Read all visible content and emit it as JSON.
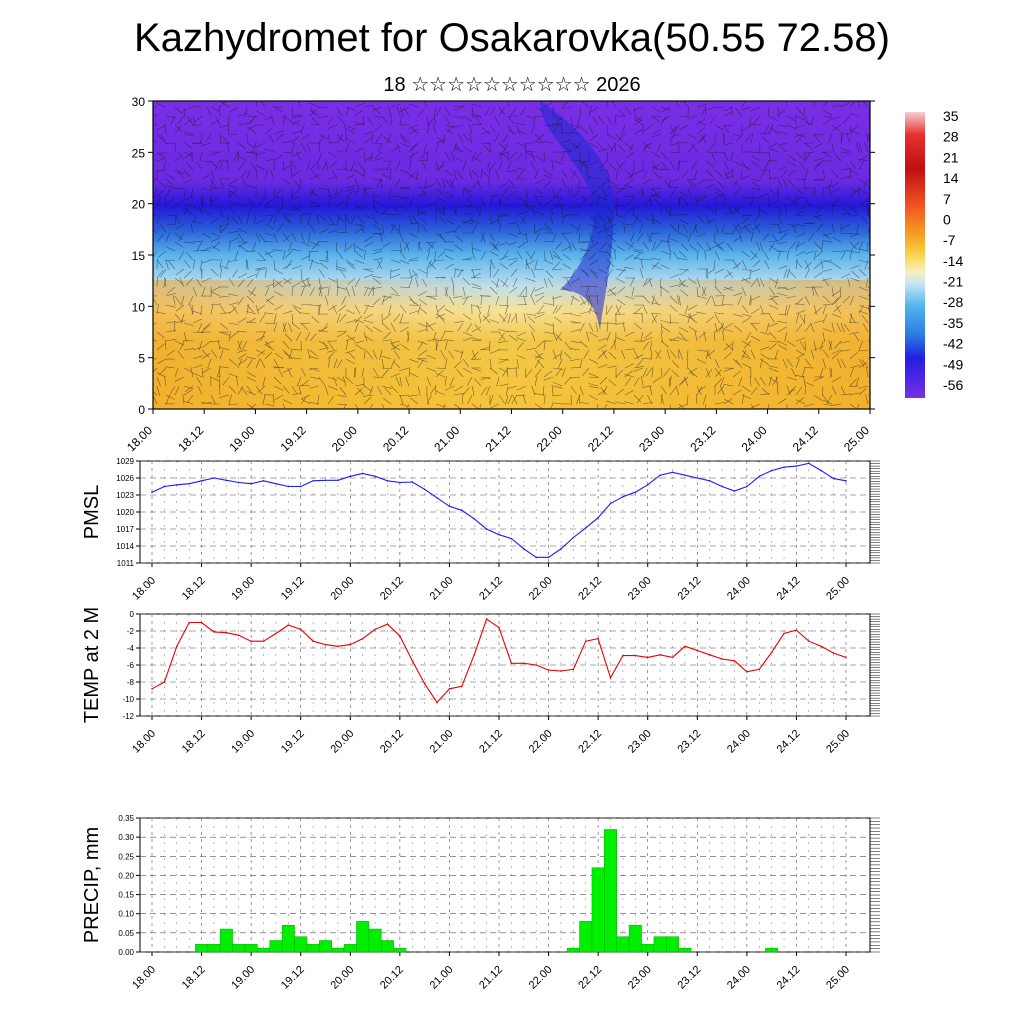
{
  "title": "Kazhydromet for Osakarovka(50.55 72.58)",
  "subtitle": "18 ☆☆☆☆☆☆☆☆☆☆ 2026",
  "colors": {
    "pmsl_line": "#1a1aff",
    "temp_line": "#e60000",
    "precip_bar": "#00ee00",
    "grid": "#555555"
  },
  "chart_data": [
    {
      "type": "heatmap",
      "title": "",
      "xlabel": "",
      "ylabel": "",
      "x_tick_labels": [
        "18.00",
        "18.12",
        "19.00",
        "19.12",
        "20.00",
        "20.12",
        "21.00",
        "21.12",
        "22.00",
        "22.12",
        "23.00",
        "23.12",
        "24.00",
        "24.12",
        "25.00"
      ],
      "y_ticks": [
        0,
        5,
        10,
        15,
        20,
        25,
        30
      ],
      "ylim": [
        0,
        30
      ],
      "overlay": "wind barbs",
      "colorbar_labels": [
        "35",
        "28",
        "21",
        "14",
        "7",
        "0",
        "-7",
        "-14",
        "-21",
        "-28",
        "-35",
        "-42",
        "-49",
        "-56"
      ]
    },
    {
      "type": "line",
      "ylabel": "PMSL",
      "x_tick_labels": [
        "18.00",
        "18.12",
        "19.00",
        "19.12",
        "20.00",
        "20.12",
        "21.00",
        "21.12",
        "22.00",
        "22.12",
        "23.00",
        "23.12",
        "24.00",
        "24.12",
        "25.00"
      ],
      "y_ticks": [
        1011,
        1014,
        1017,
        1020,
        1023,
        1026,
        1029
      ],
      "ylim": [
        1011,
        1029
      ],
      "x": [
        0,
        3,
        6,
        9,
        12,
        15,
        18,
        21,
        24,
        27,
        30,
        33,
        36,
        39,
        42,
        45,
        48,
        51,
        54,
        57,
        60,
        63,
        66,
        69,
        72,
        75,
        78,
        81,
        84,
        87,
        90,
        93,
        96,
        99,
        102,
        105,
        108,
        111,
        114,
        117,
        120,
        123,
        126,
        129,
        132,
        135,
        138,
        141,
        144,
        147,
        150,
        153,
        156,
        159,
        162,
        165,
        168
      ],
      "series": [
        {
          "values": [
            1023.5,
            1024.5,
            1024.8,
            1025,
            1025.5,
            1026,
            1025.6,
            1025.2,
            1025,
            1025.5,
            1025,
            1024.5,
            1024.5,
            1025.5,
            1025.6,
            1025.6,
            1026.3,
            1026.8,
            1026.3,
            1025.5,
            1025.2,
            1025.3,
            1024,
            1022.5,
            1021,
            1020.3,
            1018.8,
            1017,
            1016,
            1015.3,
            1013.5,
            1012,
            1012,
            1013.5,
            1015.5,
            1017.2,
            1019,
            1021.5,
            1022.7,
            1023.5,
            1024.8,
            1026.5,
            1027,
            1026.5,
            1026,
            1025.5,
            1024.5,
            1023.7,
            1024.5,
            1026.3,
            1027.3,
            1027.9,
            1028.1,
            1028.6,
            1027.3,
            1025.9,
            1025.5
          ]
        }
      ]
    },
    {
      "type": "line",
      "ylabel": "TEMP at 2 M",
      "x_tick_labels": [
        "18.00",
        "18.12",
        "19.00",
        "19.12",
        "20.00",
        "20.12",
        "21.00",
        "21.12",
        "22.00",
        "22.12",
        "23.00",
        "23.12",
        "24.00",
        "24.12",
        "25.00"
      ],
      "y_ticks": [
        0,
        -2,
        -4,
        -6,
        -8,
        -10,
        -12
      ],
      "ylim": [
        -12,
        0
      ],
      "x": [
        0,
        3,
        6,
        9,
        12,
        15,
        18,
        21,
        24,
        27,
        30,
        33,
        36,
        39,
        42,
        45,
        48,
        51,
        54,
        57,
        60,
        63,
        66,
        69,
        72,
        75,
        78,
        81,
        84,
        87,
        90,
        93,
        96,
        99,
        102,
        105,
        108,
        111,
        114,
        117,
        120,
        123,
        126,
        129,
        132,
        135,
        138,
        141,
        144,
        147,
        150,
        153,
        156,
        159,
        162,
        165,
        168
      ],
      "series": [
        {
          "values": [
            -8.8,
            -8,
            -3.8,
            -1,
            -1,
            -2.1,
            -2.2,
            -2.5,
            -3.2,
            -3.2,
            -2.3,
            -1.3,
            -1.8,
            -3.2,
            -3.6,
            -3.8,
            -3.6,
            -2.9,
            -1.8,
            -1.2,
            -2.6,
            -5.5,
            -8.2,
            -10.4,
            -8.8,
            -8.5,
            -4.8,
            -0.6,
            -1.6,
            -5.8,
            -5.8,
            -6,
            -6.6,
            -6.7,
            -6.5,
            -3.2,
            -2.9,
            -7.5,
            -4.9,
            -4.9,
            -5.1,
            -4.8,
            -5.1,
            -3.8,
            -4.3,
            -4.8,
            -5.3,
            -5.5,
            -6.8,
            -6.5,
            -4.5,
            -2.3,
            -1.9,
            -3.2,
            -3.8,
            -4.6,
            -5.1
          ]
        }
      ]
    },
    {
      "type": "bar",
      "ylabel": "PRECIP, mm",
      "x_tick_labels": [
        "18.00",
        "18.12",
        "19.00",
        "19.12",
        "20.00",
        "20.12",
        "21.00",
        "21.12",
        "22.00",
        "22.12",
        "23.00",
        "23.12",
        "24.00",
        "24.12",
        "25.00"
      ],
      "y_tick_labels": [
        "0.00",
        "0.05",
        "0.10",
        "0.15",
        "0.20",
        "0.25",
        "0.30",
        "0.35"
      ],
      "ylim": [
        0,
        0.35
      ],
      "x": [
        0,
        3,
        6,
        9,
        12,
        15,
        18,
        21,
        24,
        27,
        30,
        33,
        36,
        39,
        42,
        45,
        48,
        51,
        54,
        57,
        60,
        63,
        66,
        69,
        72,
        75,
        78,
        81,
        84,
        87,
        90,
        93,
        96,
        99,
        102,
        105,
        108,
        111,
        114,
        117,
        120,
        123,
        126,
        129,
        132,
        135,
        138,
        141,
        144,
        147,
        150,
        153,
        156,
        159,
        162,
        165,
        168
      ],
      "values": [
        0,
        0,
        0,
        0,
        0.02,
        0.02,
        0.06,
        0.02,
        0.02,
        0.01,
        0.03,
        0.07,
        0.04,
        0.02,
        0.03,
        0.01,
        0.02,
        0.08,
        0.06,
        0.03,
        0.01,
        0,
        0,
        0,
        0,
        0,
        0,
        0,
        0,
        0,
        0,
        0,
        0,
        0,
        0.01,
        0.08,
        0.22,
        0.32,
        0.04,
        0.07,
        0.02,
        0.04,
        0.04,
        0.01,
        0,
        0,
        0,
        0,
        0,
        0,
        0.01,
        0,
        0,
        0,
        0,
        0,
        0
      ]
    }
  ]
}
